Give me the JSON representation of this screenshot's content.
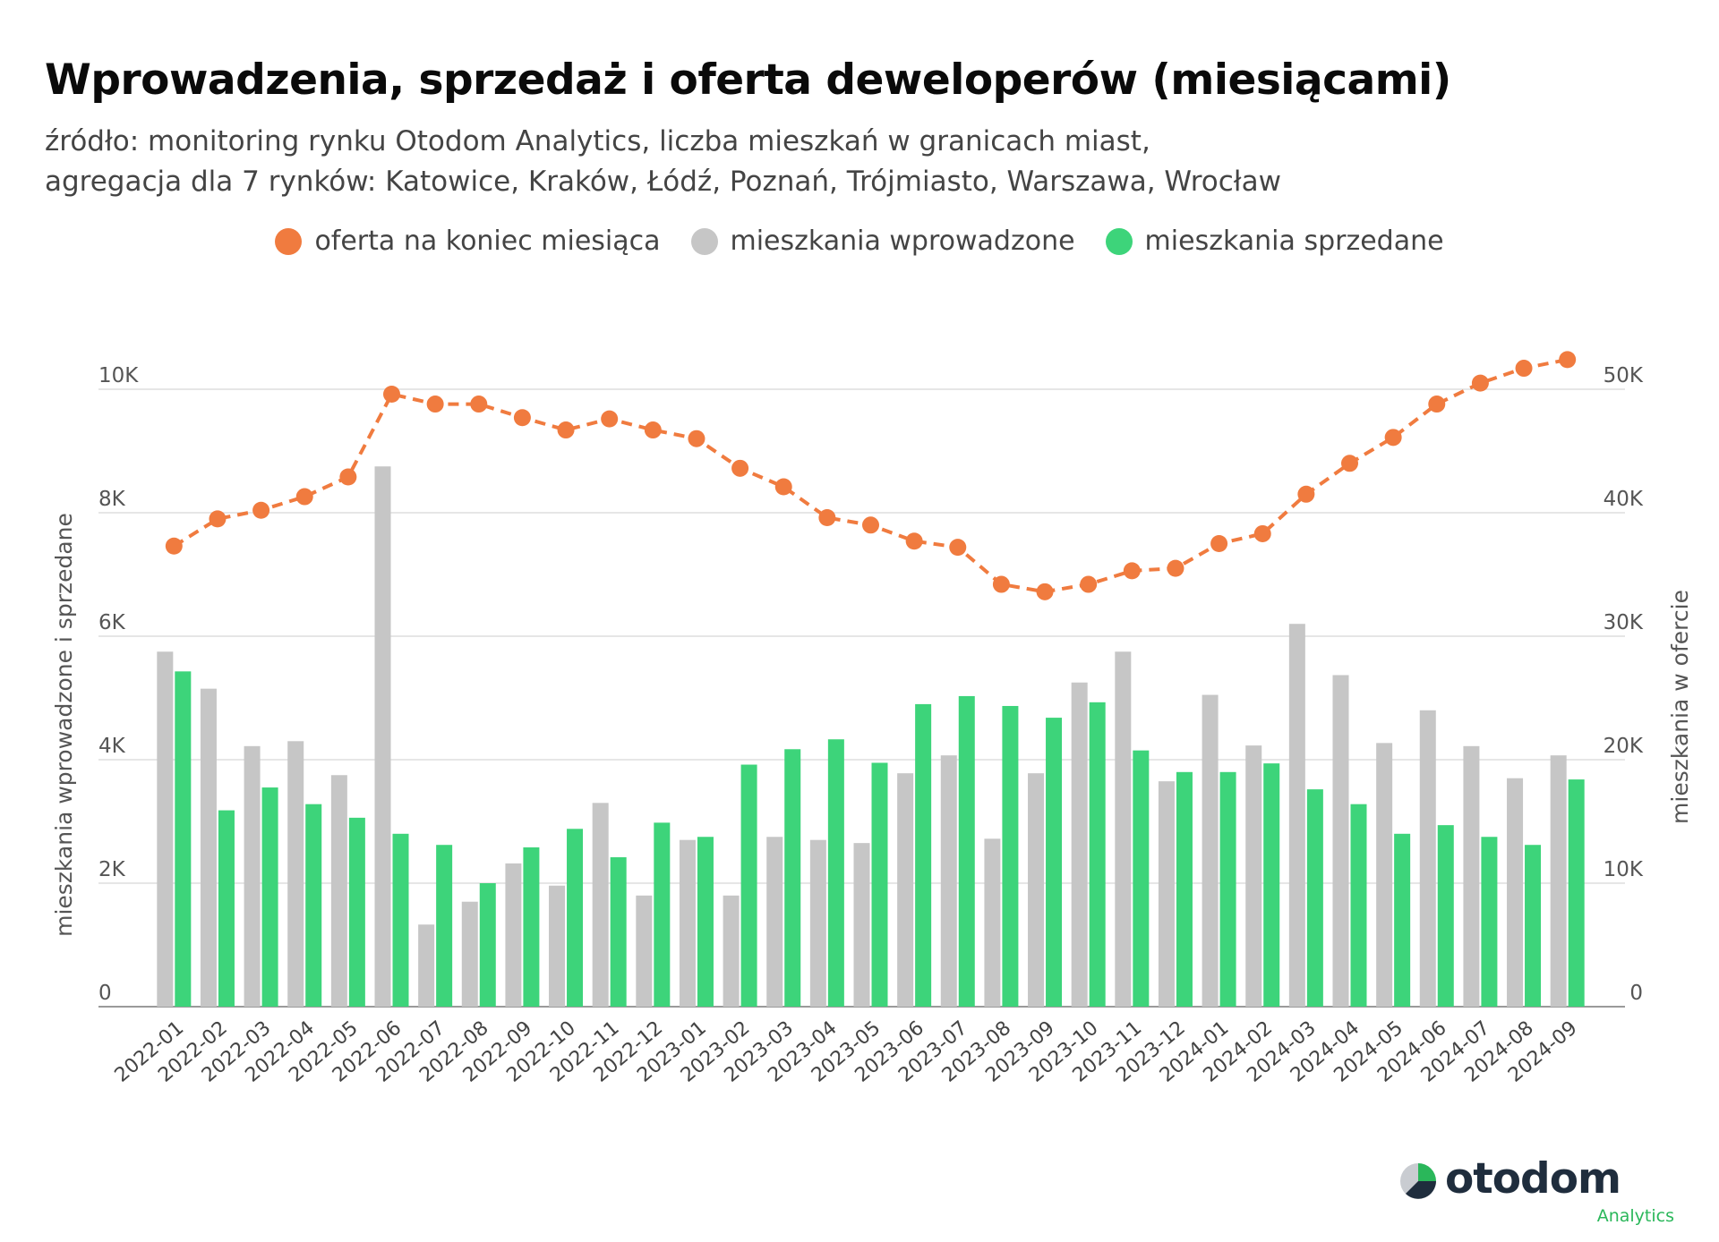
{
  "header": {
    "title": "Wprowadzenia, sprzedaż i oferta deweloperów (miesiącami)",
    "subtitle_line1": "źródło: monitoring rynku Otodom Analytics, liczba mieszkań w granicach miast,",
    "subtitle_line2": "agregacja dla 7 rynków: Katowice, Kraków, Łódź, Poznań, Trójmiasto, Warszawa, Wrocław"
  },
  "legend": {
    "offer": "oferta na koniec miesiąca",
    "introduced": "mieszkania wprowadzone",
    "sold": "mieszkania sprzedane"
  },
  "colors": {
    "offer": "#f07b3f",
    "introduced": "#c6c6c6",
    "sold": "#3dd47a",
    "grid": "#dddddd"
  },
  "logo": {
    "word": "otodom",
    "sub": "Analytics"
  },
  "chart_data": {
    "type": "bar",
    "title": "Wprowadzenia, sprzedaż i oferta deweloperów (miesiącami)",
    "ylabel_left": "mieszkania wprowadzone i sprzedane",
    "ylabel_right": "mieszkania w ofercie",
    "ylim_left": [
      0,
      10000
    ],
    "ylim_right": [
      0,
      50000
    ],
    "yticks_left": [
      "0",
      "2K",
      "4K",
      "6K",
      "8K",
      "10K"
    ],
    "yticks_right": [
      "0",
      "10K",
      "20K",
      "30K",
      "40K",
      "50K"
    ],
    "categories": [
      "2022-01",
      "2022-02",
      "2022-03",
      "2022-04",
      "2022-05",
      "2022-06",
      "2022-07",
      "2022-08",
      "2022-09",
      "2022-10",
      "2022-11",
      "2022-12",
      "2023-01",
      "2023-02",
      "2023-03",
      "2023-04",
      "2023-05",
      "2023-06",
      "2023-07",
      "2023-08",
      "2023-09",
      "2023-10",
      "2023-11",
      "2023-12",
      "2024-01",
      "2024-02",
      "2024-03",
      "2024-04",
      "2024-05",
      "2024-06",
      "2024-07",
      "2024-08",
      "2024-09"
    ],
    "series": [
      {
        "name": "mieszkania wprowadzone",
        "axis": "left",
        "kind": "bar",
        "values": [
          5750,
          5150,
          4220,
          4300,
          3750,
          8750,
          1330,
          1700,
          2320,
          1960,
          3300,
          1800,
          2700,
          1800,
          2750,
          2700,
          2650,
          3780,
          4070,
          2720,
          3780,
          5250,
          5750,
          3650,
          5050,
          4230,
          6200,
          5370,
          4270,
          4800,
          4220,
          3700,
          4070
        ]
      },
      {
        "name": "mieszkania sprzedane",
        "axis": "left",
        "kind": "bar",
        "values": [
          5430,
          3180,
          3550,
          3280,
          3060,
          2800,
          2620,
          2000,
          2580,
          2880,
          2420,
          2980,
          2750,
          3920,
          4170,
          4330,
          3950,
          4900,
          5030,
          4870,
          4680,
          4930,
          4150,
          3800,
          3800,
          3940,
          3520,
          3280,
          2800,
          2940,
          2750,
          2620,
          3680
        ]
      },
      {
        "name": "oferta na koniec miesiąca",
        "axis": "right",
        "kind": "line",
        "values": [
          37300,
          39500,
          40200,
          41300,
          42900,
          49600,
          48800,
          48800,
          47700,
          46700,
          47600,
          46700,
          46000,
          43600,
          42100,
          39600,
          39000,
          37700,
          37200,
          34200,
          33600,
          34200,
          35300,
          35500,
          37500,
          38300,
          41500,
          44000,
          46100,
          48800,
          50500,
          51700,
          52400
        ]
      }
    ]
  }
}
